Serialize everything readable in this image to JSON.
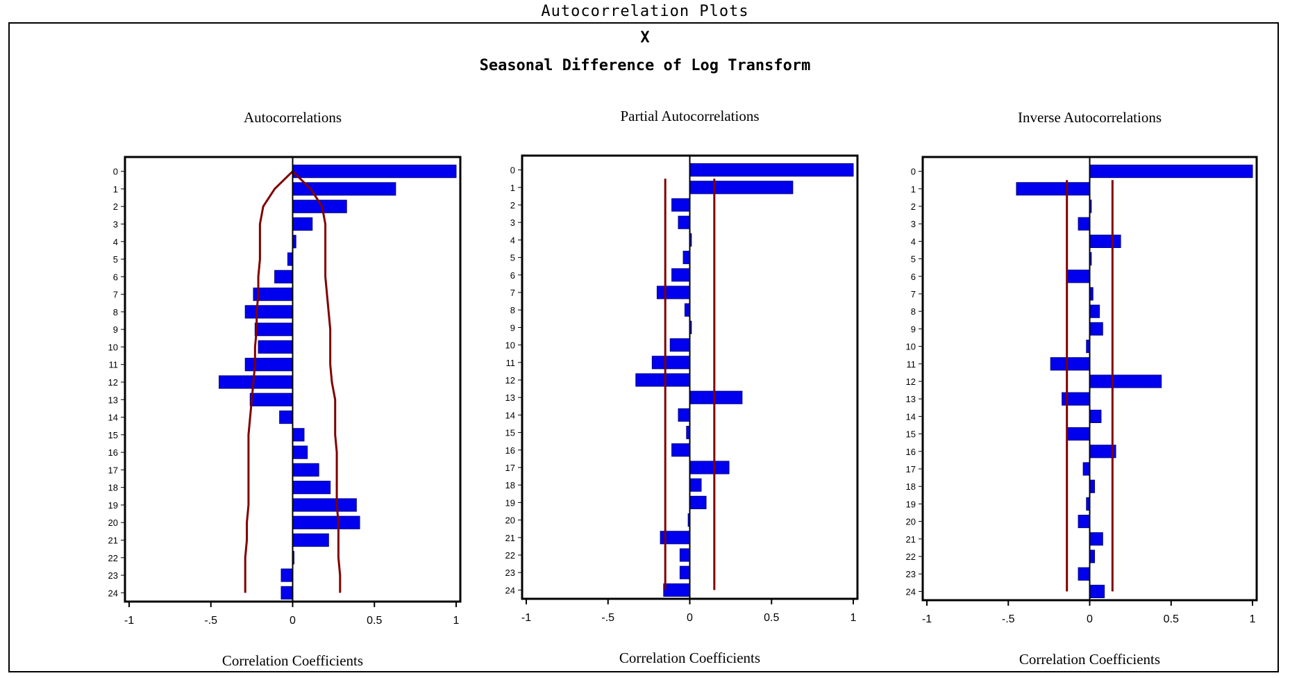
{
  "header": {
    "title": "Autocorrelation Plots",
    "subtitle_1": "X",
    "subtitle_2": "Seasonal Difference of Log Transform"
  },
  "colors": {
    "bar": "#0000ee",
    "bar_edge": "#000080",
    "confidence_line": "#800000",
    "axis": "#000000"
  },
  "chart_data": [
    {
      "type": "bar",
      "orientation": "horizontal",
      "title": "Autocorrelations",
      "xlabel": "Correlation Coefficients",
      "xlim": [
        -1,
        1
      ],
      "xticks": [
        "-1",
        "-.5",
        "0",
        "0.5",
        "1"
      ],
      "lags": [
        "0",
        "1",
        "2",
        "3",
        "4",
        "5",
        "6",
        "7",
        "8",
        "9",
        "10",
        "11",
        "12",
        "13",
        "14",
        "15",
        "16",
        "17",
        "18",
        "19",
        "20",
        "21",
        "22",
        "23",
        "24"
      ],
      "values": [
        1.0,
        0.63,
        0.33,
        0.12,
        0.02,
        -0.03,
        -0.11,
        -0.24,
        -0.29,
        -0.23,
        -0.21,
        -0.29,
        -0.45,
        -0.26,
        -0.08,
        0.07,
        0.09,
        0.16,
        0.23,
        0.39,
        0.41,
        0.22,
        0.0,
        -0.07,
        -0.07
      ],
      "confidence_band": {
        "upper": [
          0.0,
          0.11,
          0.18,
          0.2,
          0.2,
          0.2,
          0.2,
          0.21,
          0.22,
          0.23,
          0.23,
          0.23,
          0.24,
          0.26,
          0.26,
          0.26,
          0.27,
          0.27,
          0.27,
          0.27,
          0.28,
          0.28,
          0.28,
          0.29,
          0.29
        ],
        "lower": [
          0.0,
          -0.11,
          -0.18,
          -0.2,
          -0.2,
          -0.2,
          -0.21,
          -0.21,
          -0.22,
          -0.22,
          -0.23,
          -0.23,
          -0.24,
          -0.25,
          -0.26,
          -0.27,
          -0.27,
          -0.27,
          -0.27,
          -0.27,
          -0.28,
          -0.28,
          -0.29,
          -0.29,
          -0.29
        ]
      }
    },
    {
      "type": "bar",
      "orientation": "horizontal",
      "title": "Partial Autocorrelations",
      "xlabel": "Correlation Coefficients",
      "xlim": [
        -1,
        1
      ],
      "xticks": [
        "-1",
        "-.5",
        "0",
        "0.5",
        "1"
      ],
      "lags": [
        "0",
        "1",
        "2",
        "3",
        "4",
        "5",
        "6",
        "7",
        "8",
        "9",
        "10",
        "11",
        "12",
        "13",
        "14",
        "15",
        "16",
        "17",
        "18",
        "19",
        "20",
        "21",
        "22",
        "23",
        "24"
      ],
      "values": [
        1.0,
        0.63,
        -0.11,
        -0.07,
        0.01,
        -0.04,
        -0.11,
        -0.2,
        -0.03,
        0.01,
        -0.12,
        -0.23,
        -0.33,
        0.32,
        -0.07,
        -0.02,
        -0.11,
        0.24,
        0.07,
        0.1,
        -0.01,
        -0.18,
        -0.06,
        -0.06,
        -0.16
      ],
      "confidence_band": {
        "upper": 0.15,
        "lower": -0.15
      }
    },
    {
      "type": "bar",
      "orientation": "horizontal",
      "title": "Inverse Autocorrelations",
      "xlabel": "Correlation Coefficients",
      "xlim": [
        -1,
        1
      ],
      "xticks": [
        "-1",
        "-.5",
        "0",
        "0.5",
        "1"
      ],
      "lags": [
        "0",
        "1",
        "2",
        "3",
        "4",
        "5",
        "6",
        "7",
        "8",
        "9",
        "10",
        "11",
        "12",
        "13",
        "14",
        "15",
        "16",
        "17",
        "18",
        "19",
        "20",
        "21",
        "22",
        "23",
        "24"
      ],
      "values": [
        1.0,
        -0.45,
        0.01,
        -0.07,
        0.19,
        0.01,
        -0.14,
        0.02,
        0.06,
        0.08,
        -0.02,
        -0.24,
        0.44,
        -0.17,
        0.07,
        -0.14,
        0.16,
        -0.04,
        0.03,
        -0.02,
        -0.07,
        0.08,
        0.03,
        -0.07,
        0.09
      ],
      "confidence_band": {
        "upper": 0.14,
        "lower": -0.14
      }
    }
  ]
}
